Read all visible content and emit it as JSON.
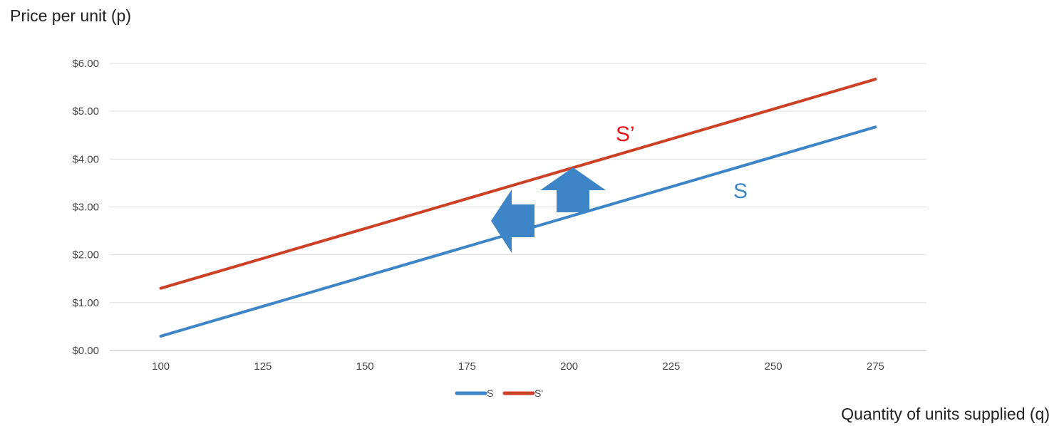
{
  "chart_data": {
    "type": "line",
    "title": "",
    "ylabel": "Price per unit (p)",
    "xlabel": "Quantity of units supplied (q)",
    "x": [
      100,
      275
    ],
    "xticks": [
      100,
      125,
      150,
      175,
      200,
      225,
      250,
      275
    ],
    "xlim": [
      87.5,
      287.5
    ],
    "yticks": [
      0,
      1,
      2,
      3,
      4,
      5,
      6
    ],
    "ytick_labels": [
      "$0.00",
      "$1.00",
      "$2.00",
      "$3.00",
      "$4.00",
      "$5.00",
      "$6.00"
    ],
    "ylim": [
      0,
      6
    ],
    "grid": true,
    "legend_position": "bottom",
    "series": [
      {
        "name": "S",
        "values": [
          0.3,
          4.67
        ],
        "color": "#3d85c6"
      },
      {
        "name": "S'",
        "values": [
          1.3,
          5.67
        ],
        "color": "#cc4125"
      }
    ],
    "annotations": [
      {
        "text": "S’",
        "color": "#e8141c"
      },
      {
        "text": "S",
        "color": "#3d85c6"
      }
    ],
    "shift_arrows": [
      {
        "direction": "up",
        "color": "#3d85c6"
      },
      {
        "direction": "left",
        "color": "#3d85c6"
      }
    ]
  }
}
